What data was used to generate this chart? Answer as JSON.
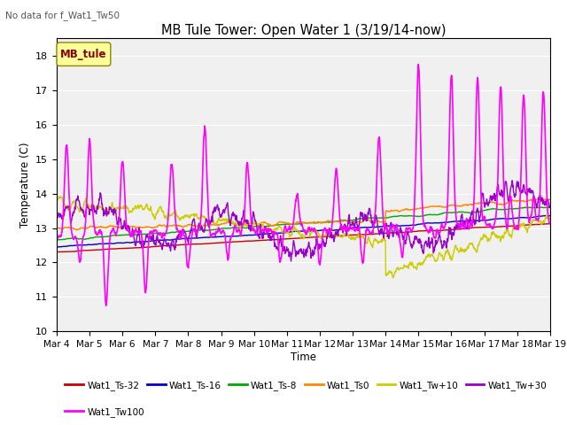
{
  "title": "MB Tule Tower: Open Water 1 (3/19/14-now)",
  "subtitle": "No data for f_Wat1_Tw50",
  "xlabel": "Time",
  "ylabel": "Temperature (C)",
  "ylim": [
    10.0,
    18.5
  ],
  "yticks": [
    10.0,
    11.0,
    12.0,
    13.0,
    14.0,
    15.0,
    16.0,
    17.0,
    18.0
  ],
  "xtick_labels": [
    "Mar 4",
    "Mar 5",
    "Mar 6",
    "Mar 7",
    "Mar 8",
    "Mar 9",
    "Mar 10",
    "Mar 11",
    "Mar 12",
    "Mar 13",
    "Mar 14",
    "Mar 15",
    "Mar 16",
    "Mar 17",
    "Mar 18",
    "Mar 19"
  ],
  "legend_box_label": "MB_tule",
  "legend_box_color": "#ffff99",
  "legend_box_border": "#888800",
  "series": {
    "Wat1_Ts-32": {
      "color": "#cc0000",
      "linewidth": 1.0
    },
    "Wat1_Ts-16": {
      "color": "#0000cc",
      "linewidth": 1.0
    },
    "Wat1_Ts-8": {
      "color": "#00aa00",
      "linewidth": 1.0
    },
    "Wat1_Ts0": {
      "color": "#ff8800",
      "linewidth": 1.0
    },
    "Wat1_Tw+10": {
      "color": "#cccc00",
      "linewidth": 1.0
    },
    "Wat1_Tw+30": {
      "color": "#9900cc",
      "linewidth": 1.0
    },
    "Wat1_Tw100": {
      "color": "#ff00ff",
      "linewidth": 1.2
    }
  },
  "figsize": [
    6.4,
    4.8
  ],
  "dpi": 100
}
